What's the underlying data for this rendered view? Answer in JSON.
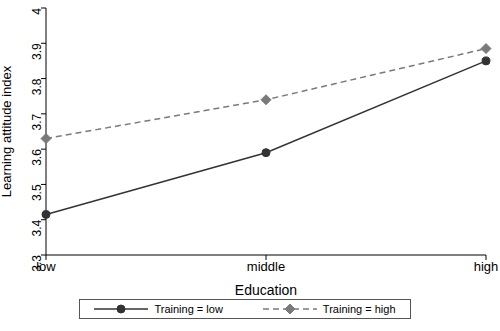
{
  "chart_data": {
    "type": "line",
    "categories": [
      "low",
      "middle",
      "high"
    ],
    "x_label": "Education",
    "y_label": "Learning attitude index",
    "ylim": [
      3.3,
      4
    ],
    "yticks": [
      3.3,
      3.4,
      3.5,
      3.6,
      3.7,
      3.8,
      3.9,
      4
    ],
    "grid": false,
    "legend": "bottom",
    "series": [
      {
        "name": "Training = low",
        "color": "#333333",
        "marker": "circle",
        "line_style": "solid",
        "values": [
          3.415,
          3.59,
          3.85
        ]
      },
      {
        "name": "Training = high",
        "color": "#7a7a7a",
        "marker": "diamond",
        "line_style": "dashed",
        "values": [
          3.63,
          3.74,
          3.885
        ]
      }
    ]
  }
}
